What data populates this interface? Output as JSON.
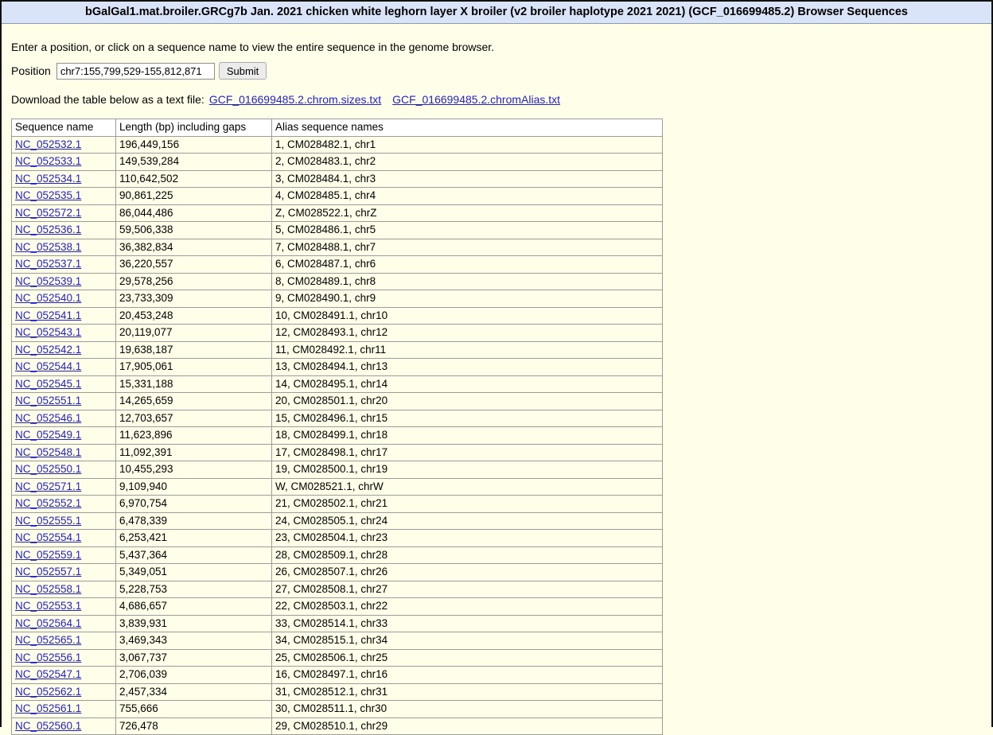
{
  "title": "bGalGal1.mat.broiler.GRCg7b Jan. 2021 chicken white leghorn layer X broiler (v2 broiler haplotype 2021 2021) (GCF_016699485.2) Browser Sequences",
  "intro": "Enter a position, or click on a sequence name to view the entire sequence in the genome browser.",
  "position_form": {
    "label": "Position",
    "value": "chr7:155,799,529-155,812,871",
    "submit_label": "Submit"
  },
  "download": {
    "prefix": "Download the table below as a text file:",
    "links": [
      "GCF_016699485.2.chrom.sizes.txt",
      "GCF_016699485.2.chromAlias.txt"
    ]
  },
  "table": {
    "headers": [
      "Sequence name",
      "Length (bp) including gaps",
      "Alias sequence names"
    ],
    "rows": [
      {
        "name": "NC_052532.1",
        "length": "196,449,156",
        "alias": "1, CM028482.1, chr1"
      },
      {
        "name": "NC_052533.1",
        "length": "149,539,284",
        "alias": "2, CM028483.1, chr2"
      },
      {
        "name": "NC_052534.1",
        "length": "110,642,502",
        "alias": "3, CM028484.1, chr3"
      },
      {
        "name": "NC_052535.1",
        "length": "90,861,225",
        "alias": "4, CM028485.1, chr4"
      },
      {
        "name": "NC_052572.1",
        "length": "86,044,486",
        "alias": "Z, CM028522.1, chrZ"
      },
      {
        "name": "NC_052536.1",
        "length": "59,506,338",
        "alias": "5, CM028486.1, chr5"
      },
      {
        "name": "NC_052538.1",
        "length": "36,382,834",
        "alias": "7, CM028488.1, chr7"
      },
      {
        "name": "NC_052537.1",
        "length": "36,220,557",
        "alias": "6, CM028487.1, chr6"
      },
      {
        "name": "NC_052539.1",
        "length": "29,578,256",
        "alias": "8, CM028489.1, chr8"
      },
      {
        "name": "NC_052540.1",
        "length": "23,733,309",
        "alias": "9, CM028490.1, chr9"
      },
      {
        "name": "NC_052541.1",
        "length": "20,453,248",
        "alias": "10, CM028491.1, chr10"
      },
      {
        "name": "NC_052543.1",
        "length": "20,119,077",
        "alias": "12, CM028493.1, chr12"
      },
      {
        "name": "NC_052542.1",
        "length": "19,638,187",
        "alias": "11, CM028492.1, chr11"
      },
      {
        "name": "NC_052544.1",
        "length": "17,905,061",
        "alias": "13, CM028494.1, chr13"
      },
      {
        "name": "NC_052545.1",
        "length": "15,331,188",
        "alias": "14, CM028495.1, chr14"
      },
      {
        "name": "NC_052551.1",
        "length": "14,265,659",
        "alias": "20, CM028501.1, chr20"
      },
      {
        "name": "NC_052546.1",
        "length": "12,703,657",
        "alias": "15, CM028496.1, chr15"
      },
      {
        "name": "NC_052549.1",
        "length": "11,623,896",
        "alias": "18, CM028499.1, chr18"
      },
      {
        "name": "NC_052548.1",
        "length": "11,092,391",
        "alias": "17, CM028498.1, chr17"
      },
      {
        "name": "NC_052550.1",
        "length": "10,455,293",
        "alias": "19, CM028500.1, chr19"
      },
      {
        "name": "NC_052571.1",
        "length": "9,109,940",
        "alias": "W, CM028521.1, chrW"
      },
      {
        "name": "NC_052552.1",
        "length": "6,970,754",
        "alias": "21, CM028502.1, chr21"
      },
      {
        "name": "NC_052555.1",
        "length": "6,478,339",
        "alias": "24, CM028505.1, chr24"
      },
      {
        "name": "NC_052554.1",
        "length": "6,253,421",
        "alias": "23, CM028504.1, chr23"
      },
      {
        "name": "NC_052559.1",
        "length": "5,437,364",
        "alias": "28, CM028509.1, chr28"
      },
      {
        "name": "NC_052557.1",
        "length": "5,349,051",
        "alias": "26, CM028507.1, chr26"
      },
      {
        "name": "NC_052558.1",
        "length": "5,228,753",
        "alias": "27, CM028508.1, chr27"
      },
      {
        "name": "NC_052553.1",
        "length": "4,686,657",
        "alias": "22, CM028503.1, chr22"
      },
      {
        "name": "NC_052564.1",
        "length": "3,839,931",
        "alias": "33, CM028514.1, chr33"
      },
      {
        "name": "NC_052565.1",
        "length": "3,469,343",
        "alias": "34, CM028515.1, chr34"
      },
      {
        "name": "NC_052556.1",
        "length": "3,067,737",
        "alias": "25, CM028506.1, chr25"
      },
      {
        "name": "NC_052547.1",
        "length": "2,706,039",
        "alias": "16, CM028497.1, chr16"
      },
      {
        "name": "NC_052562.1",
        "length": "2,457,334",
        "alias": "31, CM028512.1, chr31"
      },
      {
        "name": "NC_052561.1",
        "length": "755,666",
        "alias": "30, CM028511.1, chr30"
      },
      {
        "name": "NC_052560.1",
        "length": "726,478",
        "alias": "29, CM028510.1, chr29"
      }
    ]
  },
  "colors": {
    "page_background": "#FFFEE8",
    "title_bar_background": "#D9E4F8",
    "link_blue": "#2222CC",
    "table_border": "#9C9C9C"
  }
}
